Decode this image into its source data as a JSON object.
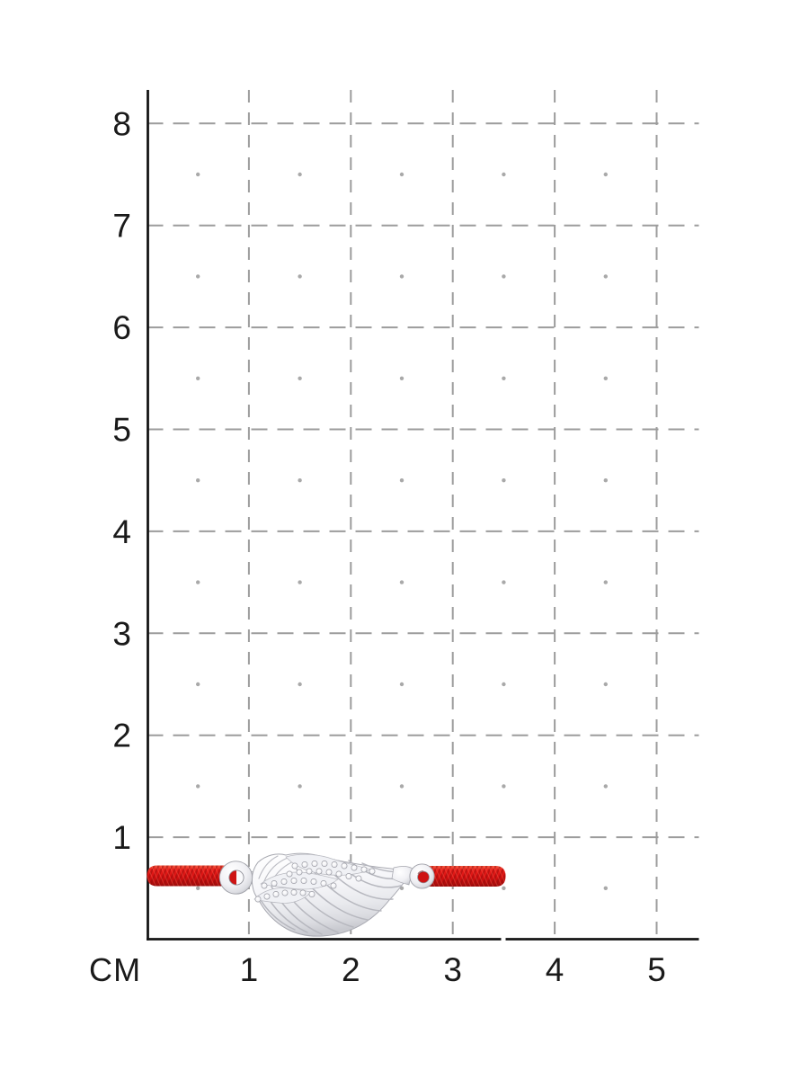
{
  "ruler": {
    "unit_label": "СМ",
    "y_ticks": [
      "8",
      "7",
      "6",
      "5",
      "4",
      "3",
      "2",
      "1"
    ],
    "x_ticks": [
      "1",
      "2",
      "3",
      "4",
      "5"
    ],
    "grid_color": "#9c9c9c",
    "dot_color": "#a9a9a9",
    "axis_color": "#141414",
    "label_color": "#1a1a1a"
  },
  "product": {
    "cord_color": "#d61111",
    "cord_dark": "#8c0b0b",
    "metal_color": "#e9eaee",
    "stone_color": "#f4f4f7"
  }
}
